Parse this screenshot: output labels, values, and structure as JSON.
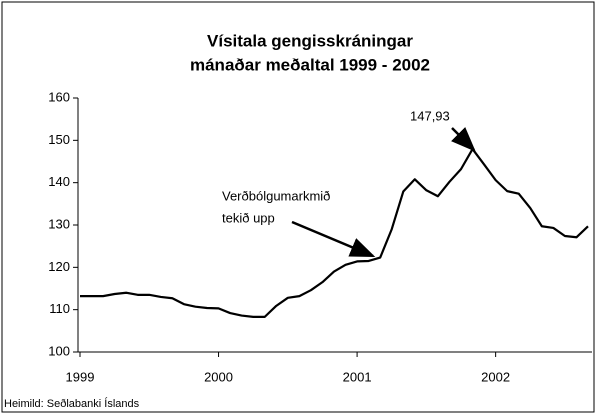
{
  "chart_data": {
    "type": "line",
    "title": [
      "Vísitala gengisskráningar",
      "mánaðar meðaltal 1999 - 2002"
    ],
    "source": "Heimild: Seðlabanki Íslands",
    "annotations": [
      "147,93",
      "Verðbólgumarkmið",
      "tekið upp"
    ],
    "categories": [
      "1999",
      null,
      null,
      null,
      null,
      null,
      null,
      null,
      null,
      null,
      null,
      null,
      "2000",
      null,
      null,
      null,
      null,
      null,
      null,
      null,
      null,
      null,
      null,
      null,
      "2001",
      null,
      null,
      null,
      null,
      null,
      null,
      null,
      null,
      null,
      null,
      null,
      "2002",
      null,
      null,
      null,
      null,
      null,
      null,
      null,
      null
    ],
    "series": [
      {
        "name": "Vísitala gengisskráningar",
        "color": "#000000",
        "values": [
          113.2,
          113.2,
          113.2,
          113.7,
          114.0,
          113.5,
          113.5,
          113.0,
          112.7,
          111.3,
          110.7,
          110.4,
          110.3,
          109.2,
          108.6,
          108.3,
          108.3,
          110.9,
          112.8,
          113.2,
          114.6,
          116.5,
          119.0,
          120.6,
          121.4,
          121.5,
          122.3,
          129.0,
          137.9,
          140.8,
          138.2,
          136.8,
          140.2,
          143.2,
          147.93,
          144.3,
          140.6,
          138.0,
          137.4,
          134.0,
          129.7,
          129.3,
          127.4,
          127.1,
          129.7
        ]
      }
    ],
    "ylim": [
      100,
      160
    ],
    "yticks": [
      100,
      110,
      120,
      130,
      140,
      150,
      160
    ],
    "grid": false
  }
}
